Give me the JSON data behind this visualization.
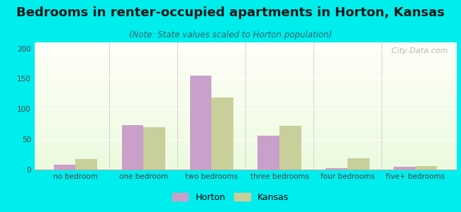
{
  "title": "Bedrooms in renter-occupied apartments in Horton, Kansas",
  "subtitle": "(Note: State values scaled to Horton population)",
  "categories": [
    "no bedroom",
    "one bedroom",
    "two bedrooms",
    "three bedrooms",
    "four bedrooms",
    "five+ bedrooms"
  ],
  "horton_values": [
    8,
    73,
    155,
    56,
    2,
    5
  ],
  "kansas_values": [
    18,
    70,
    119,
    72,
    19,
    6
  ],
  "horton_color": "#c9a0c9",
  "kansas_color": "#c8cf9a",
  "background_outer": "#00eded",
  "ylim": [
    0,
    210
  ],
  "yticks": [
    0,
    50,
    100,
    150,
    200
  ],
  "bar_width": 0.32,
  "title_fontsize": 13,
  "subtitle_fontsize": 8.5,
  "tick_fontsize": 7.5,
  "legend_fontsize": 9,
  "watermark": "  City-Data.com"
}
